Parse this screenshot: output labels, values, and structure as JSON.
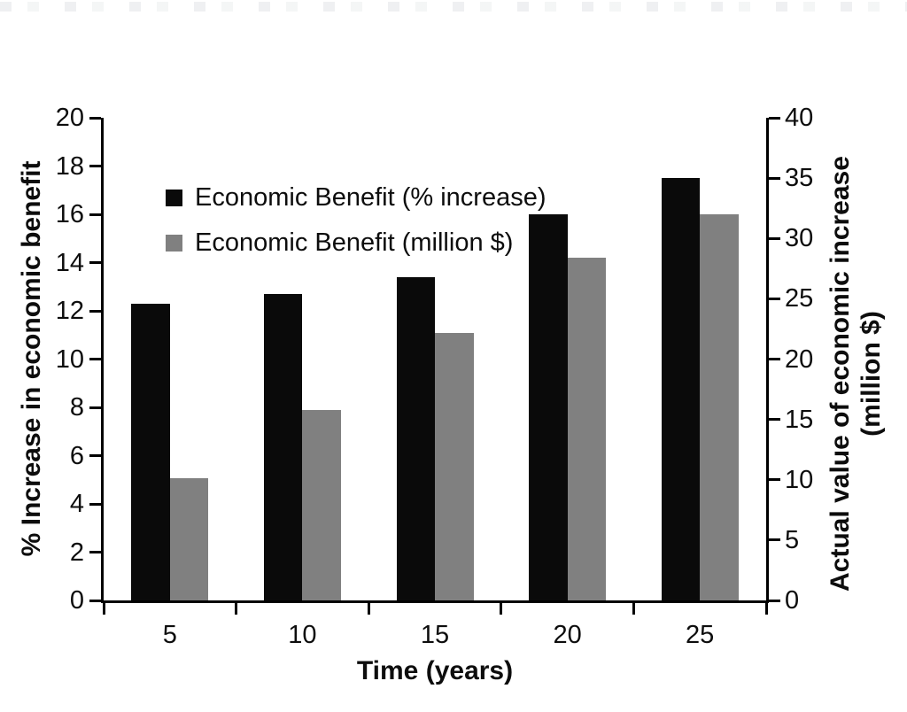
{
  "figure": {
    "background": "#ffffff",
    "axis_color": "#000000",
    "text_color": "#0d0d0d"
  },
  "chart_data": {
    "type": "bar",
    "title": "",
    "categories": [
      5,
      10,
      15,
      20,
      25
    ],
    "series": [
      {
        "name": "Economic Benefit (% increase)",
        "axis": "left",
        "color": "#0a0a0a",
        "values": [
          12.3,
          12.7,
          13.4,
          16.0,
          17.5
        ]
      },
      {
        "name": "Economic Benefit (million $)",
        "axis": "right",
        "color": "#808080",
        "values": [
          10.1,
          15.8,
          22.2,
          28.4,
          32.0
        ]
      }
    ],
    "xlabel": "Time (years)",
    "x_tick_labels": [
      "5",
      "10",
      "15",
      "20",
      "25"
    ],
    "left_axis": {
      "label": "% Increase in economic benefit",
      "min": 0,
      "max": 20,
      "tick_step": 2,
      "tick_labels": [
        "20",
        "18",
        "16",
        "14",
        "12",
        "10",
        "8",
        "6",
        "4",
        "2",
        "0"
      ]
    },
    "right_axis": {
      "label_line1": "Actual value of economic increase",
      "label_line2": "(million $)",
      "min": 0,
      "max": 40,
      "tick_step": 5,
      "tick_labels": [
        "40",
        "35",
        "30",
        "25",
        "20",
        "15",
        "10",
        "5",
        "0"
      ]
    },
    "grid": false,
    "legend_position": "upper-left-inside"
  }
}
